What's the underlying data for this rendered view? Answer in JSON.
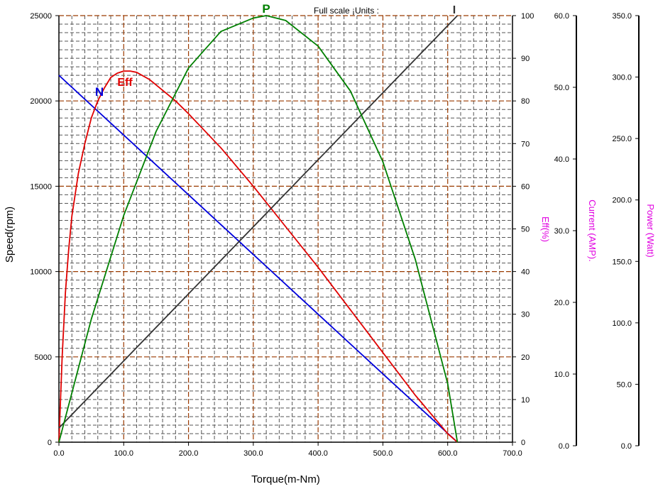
{
  "chart_data": {
    "type": "line",
    "title": "Full scale ¡Units :",
    "xlabel": "Torque(m-Nm)",
    "x_ticks": [
      "0.0",
      "100.0",
      "200.0",
      "300.0",
      "400.0",
      "500.0",
      "600.0",
      "700.0"
    ],
    "xlim": [
      0,
      700
    ],
    "grid": true,
    "axes": {
      "speed": {
        "label": "Speed(rpm)",
        "range": [
          0,
          25000
        ],
        "ticks": [
          "0",
          "5000",
          "10000",
          "15000",
          "20000",
          "25000"
        ]
      },
      "efficiency": {
        "label": "Eff(%)",
        "range": [
          0,
          100
        ],
        "ticks": [
          "0",
          "10",
          "20",
          "30",
          "40",
          "50",
          "60",
          "70",
          "80",
          "90",
          "100"
        ]
      },
      "current": {
        "label": "Current (AMP).",
        "range": [
          0,
          60
        ],
        "ticks": [
          "0.0",
          "10.0",
          "20.0",
          "30.0",
          "40.0",
          "50.0",
          "60.0"
        ]
      },
      "power": {
        "label": "Power (Watt)",
        "range": [
          0,
          350
        ],
        "ticks": [
          "0.0",
          "50.0",
          "100.0",
          "150.0",
          "200.0",
          "250.0",
          "300.0",
          "350.0"
        ]
      }
    },
    "series": [
      {
        "name": "N",
        "axis": "speed",
        "color": "#0000dd",
        "x": [
          0,
          100,
          200,
          300,
          400,
          500,
          615
        ],
        "y": [
          21500,
          18000,
          14500,
          11000,
          7500,
          4000,
          0
        ]
      },
      {
        "name": "Eff",
        "axis": "efficiency",
        "color": "#e00000",
        "x": [
          0,
          5,
          10,
          15,
          20,
          30,
          40,
          50,
          60,
          70,
          80,
          90,
          100,
          110,
          120,
          140,
          160,
          180,
          200,
          250,
          300,
          350,
          400,
          450,
          500,
          550,
          600,
          615
        ],
        "y": [
          0,
          20,
          35,
          45,
          53,
          63,
          70,
          76,
          80,
          83,
          85.5,
          86.5,
          87,
          87,
          86.7,
          85,
          82.5,
          80,
          77,
          69,
          60,
          50.5,
          41,
          31,
          21,
          11,
          2,
          0
        ]
      },
      {
        "name": "I",
        "axis": "current",
        "color": "#333333",
        "x": [
          0,
          615
        ],
        "y": [
          2,
          60
        ]
      },
      {
        "name": "P",
        "axis": "power",
        "color": "#008000",
        "x": [
          0,
          50,
          100,
          150,
          200,
          250,
          300,
          320,
          350,
          400,
          450,
          500,
          550,
          600,
          615
        ],
        "y": [
          0,
          101,
          186,
          255,
          307,
          337,
          348,
          350,
          346,
          325,
          288,
          230,
          150,
          48,
          0
        ]
      }
    ]
  }
}
